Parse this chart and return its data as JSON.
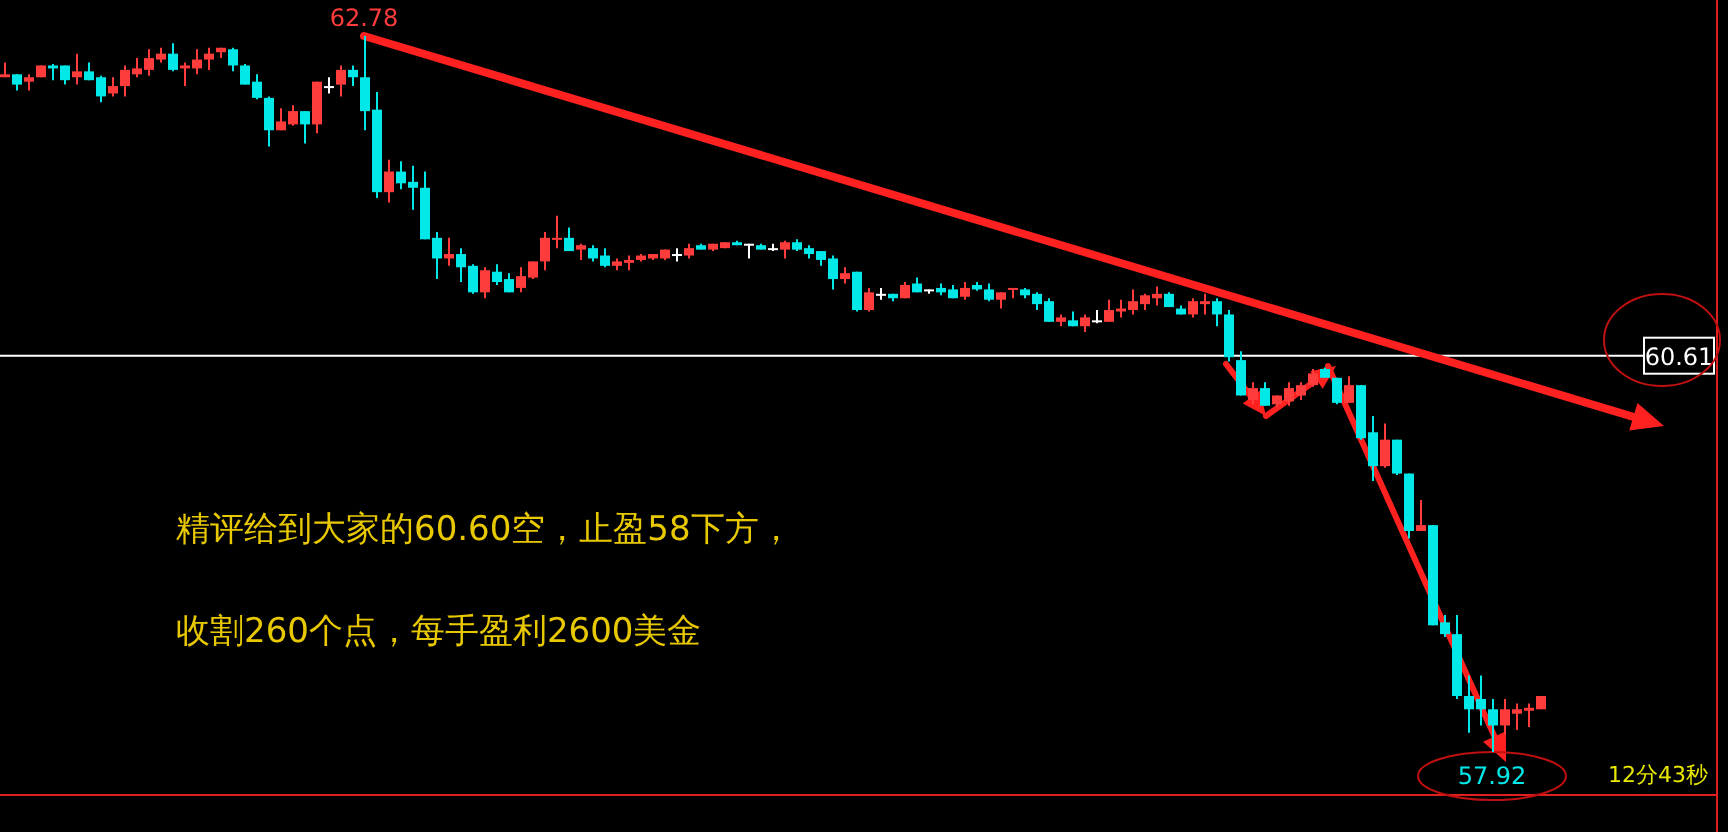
{
  "chart_data": {
    "type": "candlestick",
    "categories": [
      null,
      null,
      null,
      null,
      null,
      null,
      null,
      null,
      null,
      null,
      null,
      null,
      null,
      null,
      null,
      null,
      null,
      null,
      null,
      null,
      null,
      null,
      null,
      null,
      null,
      null,
      null,
      null,
      null,
      null,
      null,
      null,
      null,
      null,
      null,
      null,
      null,
      null,
      null,
      null,
      null,
      null,
      null,
      null,
      null,
      null,
      null,
      null,
      null,
      null,
      null,
      null,
      null,
      null,
      null,
      null,
      null,
      null,
      null,
      null,
      null,
      null,
      null,
      null,
      null,
      null,
      null,
      null,
      null,
      null,
      null,
      null,
      null,
      null,
      null,
      null,
      null,
      null,
      null,
      null,
      null,
      null,
      null,
      null,
      null,
      null,
      null,
      null,
      null,
      null,
      null,
      null,
      null,
      null,
      null,
      null,
      null,
      null,
      null,
      null,
      null,
      null,
      null,
      null,
      null,
      null,
      null,
      null,
      null,
      null,
      null,
      null,
      null,
      null,
      null,
      null,
      null,
      null,
      null,
      null,
      null,
      null,
      null,
      null,
      null,
      null,
      null,
      null,
      null
    ],
    "ohlc": [
      [
        62.5,
        62.6,
        62.5,
        62.52
      ],
      [
        62.52,
        62.52,
        62.41,
        62.45
      ],
      [
        62.47,
        62.52,
        62.41,
        62.5
      ],
      [
        62.5,
        62.58,
        62.5,
        62.58
      ],
      [
        62.58,
        62.59,
        62.48,
        62.56
      ],
      [
        62.58,
        62.58,
        62.45,
        62.48
      ],
      [
        62.5,
        62.66,
        62.45,
        62.54
      ],
      [
        62.54,
        62.6,
        62.48,
        62.48
      ],
      [
        62.5,
        62.51,
        62.33,
        62.37
      ],
      [
        62.39,
        62.5,
        62.37,
        62.44
      ],
      [
        62.44,
        62.58,
        62.37,
        62.55
      ],
      [
        62.52,
        62.63,
        62.5,
        62.56
      ],
      [
        62.55,
        62.69,
        62.51,
        62.63
      ],
      [
        62.62,
        62.7,
        62.6,
        62.66
      ],
      [
        62.66,
        62.73,
        62.54,
        62.55
      ],
      [
        62.56,
        62.6,
        62.44,
        62.58
      ],
      [
        62.56,
        62.69,
        62.52,
        62.62
      ],
      [
        62.62,
        62.7,
        62.55,
        62.66
      ],
      [
        62.67,
        62.7,
        62.63,
        62.7
      ],
      [
        62.69,
        62.7,
        62.54,
        62.58
      ],
      [
        62.58,
        62.59,
        62.45,
        62.45
      ],
      [
        62.47,
        62.52,
        62.35,
        62.36
      ],
      [
        62.36,
        62.37,
        62.03,
        62.14
      ],
      [
        62.14,
        62.29,
        62.14,
        62.2
      ],
      [
        62.18,
        62.31,
        62.17,
        62.27
      ],
      [
        62.27,
        62.27,
        62.05,
        62.18
      ],
      [
        62.18,
        62.47,
        62.12,
        62.47
      ],
      [
        62.44,
        62.5,
        62.39,
        62.44
      ],
      [
        62.45,
        62.58,
        62.37,
        62.55
      ],
      [
        62.55,
        62.58,
        62.44,
        62.5
      ],
      [
        62.5,
        62.78,
        62.14,
        62.27
      ],
      [
        62.28,
        62.4,
        61.68,
        61.72
      ],
      [
        61.72,
        61.94,
        61.65,
        61.86
      ],
      [
        61.86,
        61.93,
        61.74,
        61.78
      ],
      [
        61.79,
        61.9,
        61.6,
        61.75
      ],
      [
        61.75,
        61.86,
        61.4,
        61.4
      ],
      [
        61.41,
        61.45,
        61.13,
        61.27
      ],
      [
        61.27,
        61.41,
        61.22,
        61.3
      ],
      [
        61.3,
        61.34,
        61.11,
        61.21
      ],
      [
        61.22,
        61.23,
        61.03,
        61.04
      ],
      [
        61.04,
        61.21,
        61.0,
        61.19
      ],
      [
        61.18,
        61.23,
        61.09,
        61.11
      ],
      [
        61.13,
        61.17,
        61.04,
        61.04
      ],
      [
        61.07,
        61.21,
        61.04,
        61.15
      ],
      [
        61.14,
        61.25,
        61.13,
        61.25
      ],
      [
        61.25,
        61.45,
        61.19,
        61.41
      ],
      [
        61.4,
        61.56,
        61.34,
        61.41
      ],
      [
        61.41,
        61.48,
        61.32,
        61.32
      ],
      [
        61.33,
        61.37,
        61.26,
        61.36
      ],
      [
        61.34,
        61.36,
        61.25,
        61.27
      ],
      [
        61.29,
        61.34,
        61.21,
        61.22
      ],
      [
        61.22,
        61.27,
        61.19,
        61.25
      ],
      [
        61.24,
        61.29,
        61.19,
        61.26
      ],
      [
        61.26,
        61.3,
        61.25,
        61.29
      ],
      [
        61.27,
        61.3,
        61.26,
        61.3
      ],
      [
        61.27,
        61.33,
        61.26,
        61.33
      ],
      [
        61.3,
        61.34,
        61.25,
        61.3
      ],
      [
        61.29,
        61.37,
        61.27,
        61.34
      ],
      [
        61.36,
        61.37,
        61.33,
        61.33
      ],
      [
        61.33,
        61.37,
        61.32,
        61.37
      ],
      [
        61.34,
        61.38,
        61.34,
        61.38
      ],
      [
        61.38,
        61.39,
        61.36,
        61.36
      ],
      [
        61.37,
        61.37,
        61.27,
        61.37
      ],
      [
        61.36,
        61.37,
        61.33,
        61.33
      ],
      [
        61.34,
        61.37,
        61.32,
        61.34
      ],
      [
        61.33,
        61.39,
        61.27,
        61.38
      ],
      [
        61.38,
        61.4,
        61.32,
        61.33
      ],
      [
        61.34,
        61.36,
        61.27,
        61.3
      ],
      [
        61.32,
        61.32,
        61.22,
        61.26
      ],
      [
        61.27,
        61.29,
        61.06,
        61.13
      ],
      [
        61.13,
        61.21,
        61.1,
        61.17
      ],
      [
        61.18,
        61.18,
        60.91,
        60.92
      ],
      [
        60.92,
        61.07,
        60.91,
        61.04
      ],
      [
        61.03,
        61.07,
        60.99,
        61.03
      ],
      [
        61.03,
        61.03,
        60.98,
        61.0
      ],
      [
        61.0,
        61.11,
        61.0,
        61.09
      ],
      [
        61.1,
        61.14,
        61.04,
        61.04
      ],
      [
        61.06,
        61.06,
        61.03,
        61.06
      ],
      [
        61.07,
        61.1,
        61.02,
        61.04
      ],
      [
        61.06,
        61.09,
        61.0,
        61.0
      ],
      [
        61.01,
        61.11,
        60.99,
        61.07
      ],
      [
        61.09,
        61.11,
        61.05,
        61.06
      ],
      [
        61.06,
        61.1,
        60.98,
        60.99
      ],
      [
        60.99,
        61.04,
        60.93,
        61.04
      ],
      [
        61.06,
        61.07,
        61.0,
        61.07
      ],
      [
        61.06,
        61.07,
        61.0,
        61.02
      ],
      [
        61.03,
        61.04,
        60.92,
        60.96
      ],
      [
        60.98,
        61.0,
        60.84,
        60.84
      ],
      [
        60.84,
        60.89,
        60.81,
        60.87
      ],
      [
        60.85,
        60.91,
        60.81,
        60.81
      ],
      [
        60.81,
        60.89,
        60.77,
        60.87
      ],
      [
        60.85,
        60.92,
        60.83,
        60.85
      ],
      [
        60.84,
        60.99,
        60.84,
        60.92
      ],
      [
        60.91,
        60.99,
        60.87,
        60.93
      ],
      [
        60.92,
        61.06,
        60.89,
        60.98
      ],
      [
        60.96,
        61.03,
        60.92,
        61.02
      ],
      [
        61.0,
        61.08,
        60.95,
        61.03
      ],
      [
        61.03,
        61.04,
        60.94,
        60.94
      ],
      [
        60.93,
        60.95,
        60.89,
        60.89
      ],
      [
        60.89,
        61.0,
        60.87,
        60.98
      ],
      [
        60.96,
        61.03,
        60.89,
        60.98
      ],
      [
        60.98,
        61.0,
        60.81,
        60.89
      ],
      [
        60.89,
        60.92,
        60.57,
        60.6
      ],
      [
        60.58,
        60.64,
        60.34,
        60.34
      ],
      [
        60.31,
        60.43,
        60.28,
        60.39
      ],
      [
        60.39,
        60.43,
        60.27,
        60.27
      ],
      [
        60.28,
        60.34,
        60.26,
        60.34
      ],
      [
        60.3,
        60.43,
        60.27,
        60.39
      ],
      [
        60.34,
        60.43,
        60.31,
        60.41
      ],
      [
        60.41,
        60.52,
        60.4,
        60.49
      ],
      [
        60.52,
        60.53,
        60.46,
        60.46
      ],
      [
        60.46,
        60.46,
        60.28,
        60.29
      ],
      [
        60.29,
        60.47,
        60.29,
        60.41
      ],
      [
        60.41,
        60.41,
        60.04,
        60.05
      ],
      [
        60.09,
        60.2,
        59.76,
        59.86
      ],
      [
        59.86,
        60.15,
        59.85,
        60.04
      ],
      [
        60.04,
        60.04,
        59.8,
        59.81
      ],
      [
        59.81,
        59.81,
        59.37,
        59.42
      ],
      [
        59.42,
        59.63,
        59.42,
        59.46
      ],
      [
        59.46,
        59.46,
        58.78,
        58.78
      ],
      [
        58.8,
        58.85,
        58.7,
        58.72
      ],
      [
        58.72,
        58.85,
        58.28,
        58.3
      ],
      [
        58.3,
        58.44,
        58.05,
        58.21
      ],
      [
        58.28,
        58.44,
        58.1,
        58.21
      ],
      [
        58.21,
        58.28,
        57.92,
        58.1
      ],
      [
        58.1,
        58.28,
        58.04,
        58.21
      ],
      [
        58.18,
        58.25,
        58.07,
        58.21
      ],
      [
        58.2,
        58.25,
        58.09,
        58.22
      ],
      [
        58.21,
        58.3,
        58.21,
        58.3
      ]
    ],
    "ref_lines": [
      {
        "axis": "y",
        "value": 60.61,
        "label": "60.61",
        "color": "#ffffff"
      }
    ],
    "annotations": [
      {
        "text": "62.78",
        "y": 62.78
      },
      {
        "text": "57.92",
        "y": 57.92
      },
      "精评给到大家的60.60空，止盈58下方，",
      "收割260个点，每手盈利2600美金",
      "12分43秒"
    ]
  }
}
